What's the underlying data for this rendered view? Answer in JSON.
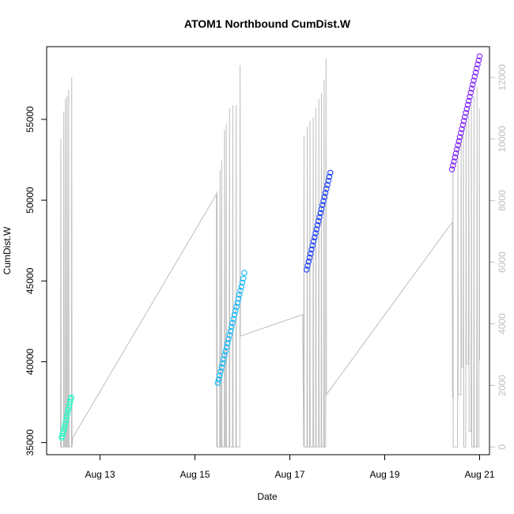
{
  "chart_data": {
    "type": "scatter",
    "title": "ATOM1 Northbound CumDist.W",
    "xlabel": "Date",
    "ylabel": "CumDist.W",
    "xlim": [
      "2024-08-11T21:00",
      "2024-08-21T05:00"
    ],
    "ylim": [
      34250,
      59500
    ],
    "y2lim": [
      -250,
      13000
    ],
    "x_ticks": [
      {
        "date": "2024-08-13",
        "label": "Aug 13"
      },
      {
        "date": "2024-08-15",
        "label": "Aug 15"
      },
      {
        "date": "2024-08-17",
        "label": "Aug 17"
      },
      {
        "date": "2024-08-19",
        "label": "Aug 19"
      },
      {
        "date": "2024-08-21",
        "label": "Aug 21"
      }
    ],
    "y_ticks": [
      35000,
      40000,
      45000,
      50000,
      55000
    ],
    "y2_ticks": [
      0,
      2000,
      4000,
      6000,
      8000,
      10000,
      12000
    ],
    "series": [
      {
        "color": "#1affc8",
        "points": [
          [
            "2024-08-12T04:30",
            35300
          ],
          [
            "2024-08-12T04:50",
            35400
          ],
          [
            "2024-08-12T05:10",
            35550
          ],
          [
            "2024-08-12T05:30",
            35700
          ],
          [
            "2024-08-12T05:50",
            35850
          ],
          [
            "2024-08-12T06:10",
            36000
          ],
          [
            "2024-08-12T06:30",
            36200
          ],
          [
            "2024-08-12T06:50",
            36400
          ],
          [
            "2024-08-12T07:10",
            36600
          ],
          [
            "2024-08-12T07:30",
            36800
          ],
          [
            "2024-08-12T07:50",
            37000
          ],
          [
            "2024-08-12T08:10",
            37150
          ],
          [
            "2024-08-12T08:30",
            37300
          ],
          [
            "2024-08-12T08:50",
            37500
          ],
          [
            "2024-08-12T09:10",
            37700
          ],
          [
            "2024-08-12T09:30",
            37800
          ]
        ]
      },
      {
        "color": "#00b4ff",
        "points": [
          [
            "2024-08-15T11:30",
            38700
          ],
          [
            "2024-08-15T12:00",
            38900
          ],
          [
            "2024-08-15T12:30",
            39150
          ],
          [
            "2024-08-15T13:00",
            39400
          ],
          [
            "2024-08-15T13:30",
            39650
          ],
          [
            "2024-08-15T14:00",
            39900
          ],
          [
            "2024-08-15T14:30",
            40150
          ],
          [
            "2024-08-15T15:00",
            40400
          ],
          [
            "2024-08-15T15:30",
            40650
          ],
          [
            "2024-08-15T16:00",
            40900
          ],
          [
            "2024-08-15T16:30",
            41150
          ],
          [
            "2024-08-15T17:00",
            41400
          ],
          [
            "2024-08-15T17:30",
            41650
          ],
          [
            "2024-08-15T18:00",
            41900
          ],
          [
            "2024-08-15T18:30",
            42150
          ],
          [
            "2024-08-15T19:00",
            42400
          ],
          [
            "2024-08-15T19:30",
            42650
          ],
          [
            "2024-08-15T20:00",
            42900
          ],
          [
            "2024-08-15T20:30",
            43150
          ],
          [
            "2024-08-15T21:00",
            43400
          ],
          [
            "2024-08-15T21:30",
            43650
          ],
          [
            "2024-08-15T22:00",
            43900
          ],
          [
            "2024-08-15T22:30",
            44150
          ],
          [
            "2024-08-15T23:00",
            44400
          ],
          [
            "2024-08-15T23:30",
            44650
          ],
          [
            "2024-08-16T00:00",
            44900
          ],
          [
            "2024-08-16T00:30",
            45150
          ],
          [
            "2024-08-16T01:00",
            45500
          ]
        ]
      },
      {
        "color": "#0a32ff",
        "points": [
          [
            "2024-08-17T08:30",
            45700
          ],
          [
            "2024-08-17T09:00",
            45950
          ],
          [
            "2024-08-17T09:30",
            46200
          ],
          [
            "2024-08-17T10:00",
            46450
          ],
          [
            "2024-08-17T10:30",
            46700
          ],
          [
            "2024-08-17T11:00",
            46950
          ],
          [
            "2024-08-17T11:30",
            47200
          ],
          [
            "2024-08-17T12:00",
            47450
          ],
          [
            "2024-08-17T12:30",
            47700
          ],
          [
            "2024-08-17T13:00",
            47950
          ],
          [
            "2024-08-17T13:30",
            48200
          ],
          [
            "2024-08-17T14:00",
            48450
          ],
          [
            "2024-08-17T14:30",
            48700
          ],
          [
            "2024-08-17T15:00",
            48950
          ],
          [
            "2024-08-17T15:30",
            49200
          ],
          [
            "2024-08-17T16:00",
            49450
          ],
          [
            "2024-08-17T16:30",
            49700
          ],
          [
            "2024-08-17T17:00",
            49950
          ],
          [
            "2024-08-17T17:30",
            50200
          ],
          [
            "2024-08-17T18:00",
            50450
          ],
          [
            "2024-08-17T18:30",
            50700
          ],
          [
            "2024-08-17T19:00",
            50950
          ],
          [
            "2024-08-17T19:30",
            51200
          ],
          [
            "2024-08-17T20:00",
            51450
          ],
          [
            "2024-08-17T20:30",
            51700
          ]
        ]
      },
      {
        "color": "#7814ff",
        "points": [
          [
            "2024-08-20T10:00",
            51900
          ],
          [
            "2024-08-20T10:30",
            52150
          ],
          [
            "2024-08-20T11:00",
            52400
          ],
          [
            "2024-08-20T11:30",
            52650
          ],
          [
            "2024-08-20T12:00",
            52900
          ],
          [
            "2024-08-20T12:30",
            53150
          ],
          [
            "2024-08-20T13:00",
            53400
          ],
          [
            "2024-08-20T13:30",
            53650
          ],
          [
            "2024-08-20T14:00",
            53900
          ],
          [
            "2024-08-20T14:30",
            54150
          ],
          [
            "2024-08-20T15:00",
            54400
          ],
          [
            "2024-08-20T15:30",
            54650
          ],
          [
            "2024-08-20T16:00",
            54900
          ],
          [
            "2024-08-20T16:30",
            55150
          ],
          [
            "2024-08-20T17:00",
            55400
          ],
          [
            "2024-08-20T17:30",
            55650
          ],
          [
            "2024-08-20T18:00",
            55900
          ],
          [
            "2024-08-20T18:30",
            56150
          ],
          [
            "2024-08-20T19:00",
            56400
          ],
          [
            "2024-08-20T19:30",
            56650
          ],
          [
            "2024-08-20T20:00",
            56900
          ],
          [
            "2024-08-20T20:30",
            57150
          ],
          [
            "2024-08-20T21:00",
            57400
          ],
          [
            "2024-08-20T21:30",
            57650
          ],
          [
            "2024-08-20T22:00",
            57900
          ],
          [
            "2024-08-20T22:30",
            58150
          ],
          [
            "2024-08-20T23:00",
            58400
          ],
          [
            "2024-08-20T23:30",
            58650
          ],
          [
            "2024-08-21T00:00",
            58900
          ]
        ]
      }
    ],
    "secondary_line": {
      "color": "#bebebe",
      "points": [
        [
          "2024-08-12T04:00",
          0
        ],
        [
          "2024-08-12T04:10",
          10000
        ],
        [
          "2024-08-12T04:20",
          0
        ],
        [
          "2024-08-12T05:30",
          0
        ],
        [
          "2024-08-12T05:40",
          10900
        ],
        [
          "2024-08-12T05:50",
          0
        ],
        [
          "2024-08-12T06:20",
          0
        ],
        [
          "2024-08-12T06:30",
          11300
        ],
        [
          "2024-08-12T06:40",
          0
        ],
        [
          "2024-08-12T07:10",
          0
        ],
        [
          "2024-08-12T07:20",
          11400
        ],
        [
          "2024-08-12T07:30",
          0
        ],
        [
          "2024-08-12T08:00",
          0
        ],
        [
          "2024-08-12T08:10",
          11600
        ],
        [
          "2024-08-12T08:20",
          0
        ],
        [
          "2024-08-12T09:30",
          0
        ],
        [
          "2024-08-12T09:40",
          12000
        ],
        [
          "2024-08-12T09:50",
          0
        ],
        [
          "2024-08-12T10:10",
          300
        ],
        [
          "2024-08-15T10:50",
          8200
        ],
        [
          "2024-08-15T11:00",
          0
        ],
        [
          "2024-08-15T11:10",
          8300
        ],
        [
          "2024-08-15T11:20",
          0
        ],
        [
          "2024-08-15T12:30",
          0
        ],
        [
          "2024-08-15T12:40",
          9000
        ],
        [
          "2024-08-15T12:50",
          0
        ],
        [
          "2024-08-15T13:20",
          0
        ],
        [
          "2024-08-15T13:30",
          9300
        ],
        [
          "2024-08-15T13:40",
          0
        ],
        [
          "2024-08-15T14:50",
          0
        ],
        [
          "2024-08-15T15:00",
          10300
        ],
        [
          "2024-08-15T15:10",
          0
        ],
        [
          "2024-08-15T15:40",
          0
        ],
        [
          "2024-08-15T15:50",
          10500
        ],
        [
          "2024-08-15T16:00",
          0
        ],
        [
          "2024-08-15T17:20",
          0
        ],
        [
          "2024-08-15T17:30",
          11000
        ],
        [
          "2024-08-15T17:40",
          0
        ],
        [
          "2024-08-15T19:00",
          0
        ],
        [
          "2024-08-15T19:10",
          11100
        ],
        [
          "2024-08-15T19:20",
          0
        ],
        [
          "2024-08-15T20:40",
          0
        ],
        [
          "2024-08-15T20:50",
          11100
        ],
        [
          "2024-08-15T21:00",
          0
        ],
        [
          "2024-08-15T22:40",
          0
        ],
        [
          "2024-08-15T22:50",
          12400
        ],
        [
          "2024-08-15T23:00",
          3600
        ],
        [
          "2024-08-17T06:30",
          4300
        ],
        [
          "2024-08-17T07:00",
          0
        ],
        [
          "2024-08-17T07:10",
          10100
        ],
        [
          "2024-08-17T07:20",
          0
        ],
        [
          "2024-08-17T08:40",
          0
        ],
        [
          "2024-08-17T08:50",
          10400
        ],
        [
          "2024-08-17T09:00",
          0
        ],
        [
          "2024-08-17T10:00",
          0
        ],
        [
          "2024-08-17T10:10",
          10600
        ],
        [
          "2024-08-17T10:20",
          0
        ],
        [
          "2024-08-17T11:40",
          0
        ],
        [
          "2024-08-17T11:50",
          10700
        ],
        [
          "2024-08-17T12:00",
          0
        ],
        [
          "2024-08-17T13:00",
          0
        ],
        [
          "2024-08-17T13:10",
          11000
        ],
        [
          "2024-08-17T13:20",
          0
        ],
        [
          "2024-08-17T14:30",
          0
        ],
        [
          "2024-08-17T14:40",
          11300
        ],
        [
          "2024-08-17T14:50",
          0
        ],
        [
          "2024-08-17T15:50",
          0
        ],
        [
          "2024-08-17T16:00",
          11500
        ],
        [
          "2024-08-17T16:10",
          0
        ],
        [
          "2024-08-17T17:10",
          0
        ],
        [
          "2024-08-17T17:20",
          11900
        ],
        [
          "2024-08-17T17:30",
          0
        ],
        [
          "2024-08-17T18:10",
          0
        ],
        [
          "2024-08-17T18:20",
          12600
        ],
        [
          "2024-08-17T18:30",
          1700
        ],
        [
          "2024-08-20T10:10",
          7300
        ],
        [
          "2024-08-20T10:20",
          1600
        ],
        [
          "2024-08-20T10:30",
          9500
        ],
        [
          "2024-08-20T10:40",
          0
        ],
        [
          "2024-08-20T12:50",
          0
        ],
        [
          "2024-08-20T13:00",
          10000
        ],
        [
          "2024-08-20T13:10",
          1700
        ],
        [
          "2024-08-20T14:30",
          1700
        ],
        [
          "2024-08-20T14:40",
          10200
        ],
        [
          "2024-08-20T14:50",
          2600
        ],
        [
          "2024-08-20T15:40",
          2600
        ],
        [
          "2024-08-20T15:50",
          10400
        ],
        [
          "2024-08-20T16:00",
          0
        ],
        [
          "2024-08-20T17:00",
          0
        ],
        [
          "2024-08-20T17:10",
          10700
        ],
        [
          "2024-08-20T17:20",
          2700
        ],
        [
          "2024-08-20T18:20",
          2700
        ],
        [
          "2024-08-20T18:30",
          11000
        ],
        [
          "2024-08-20T18:40",
          500
        ],
        [
          "2024-08-20T19:40",
          500
        ],
        [
          "2024-08-20T19:50",
          11200
        ],
        [
          "2024-08-20T20:00",
          0
        ],
        [
          "2024-08-20T21:00",
          0
        ],
        [
          "2024-08-20T21:10",
          11400
        ],
        [
          "2024-08-20T21:20",
          0
        ],
        [
          "2024-08-20T22:30",
          0
        ],
        [
          "2024-08-20T22:40",
          11700
        ],
        [
          "2024-08-20T22:50",
          0
        ],
        [
          "2024-08-20T23:40",
          0
        ],
        [
          "2024-08-20T23:50",
          11000
        ],
        [
          "2024-08-21T00:00",
          2800
        ]
      ]
    }
  }
}
